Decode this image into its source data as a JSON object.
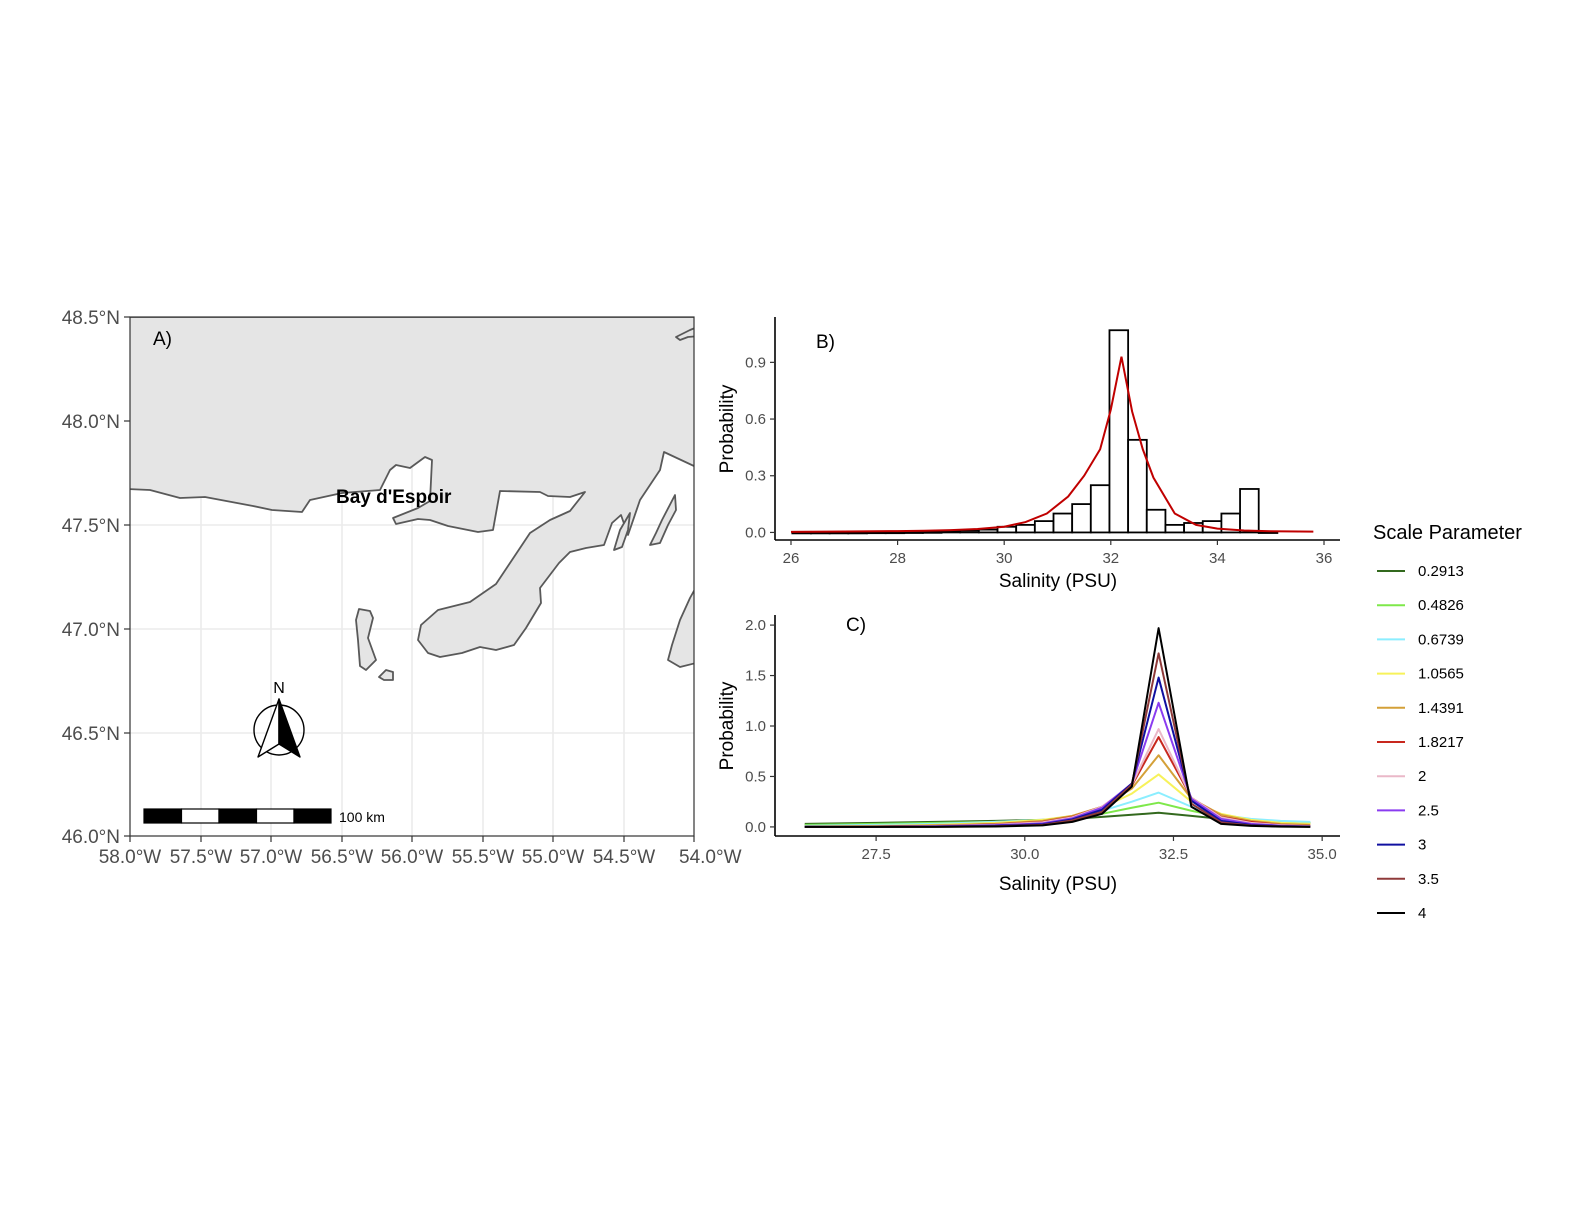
{
  "map": {
    "panel_label": "A)",
    "place_label": "Bay d'Espoir",
    "north_label": "N",
    "scalebar_label": "100 km",
    "lon_ticks": [
      "58.0°W",
      "57.5°W",
      "57.0°W",
      "56.5°W",
      "56.0°W",
      "55.5°W",
      "55.0°W",
      "54.5°W",
      "54.0°W"
    ],
    "lat_ticks": [
      "48.5°N",
      "48.0°N",
      "47.5°N",
      "47.0°N",
      "46.5°N",
      "46.0°N"
    ],
    "land_color": "#e5e5e5",
    "coast_color": "#595959"
  },
  "chart_data": [
    {
      "id": "B",
      "type": "bar",
      "panel_label": "B)",
      "xlabel": "Salinity (PSU)",
      "ylabel": "Probability",
      "xlim": [
        25.7,
        36.3
      ],
      "ylim": [
        -0.04,
        1.14
      ],
      "x_ticks": [
        26,
        28,
        30,
        32,
        34,
        36
      ],
      "y_ticks": [
        0.0,
        0.3,
        0.6,
        0.9
      ],
      "y_tick_labels": [
        "0.0",
        "0.3",
        "0.6",
        "0.9"
      ],
      "bin_width": 0.35,
      "bins": [
        {
          "x": 26.2,
          "value": 0.003
        },
        {
          "x": 26.55,
          "value": 0.003
        },
        {
          "x": 26.9,
          "value": 0.003
        },
        {
          "x": 27.25,
          "value": 0.003
        },
        {
          "x": 27.6,
          "value": 0.004
        },
        {
          "x": 27.95,
          "value": 0.004
        },
        {
          "x": 28.3,
          "value": 0.005
        },
        {
          "x": 28.65,
          "value": 0.006
        },
        {
          "x": 29.0,
          "value": 0.008
        },
        {
          "x": 29.35,
          "value": 0.01
        },
        {
          "x": 29.7,
          "value": 0.015
        },
        {
          "x": 30.05,
          "value": 0.03
        },
        {
          "x": 30.4,
          "value": 0.04
        },
        {
          "x": 30.75,
          "value": 0.06
        },
        {
          "x": 31.1,
          "value": 0.1
        },
        {
          "x": 31.45,
          "value": 0.15
        },
        {
          "x": 31.8,
          "value": 0.25
        },
        {
          "x": 32.15,
          "value": 1.07
        },
        {
          "x": 32.5,
          "value": 0.49
        },
        {
          "x": 32.85,
          "value": 0.12
        },
        {
          "x": 33.2,
          "value": 0.04
        },
        {
          "x": 33.55,
          "value": 0.05
        },
        {
          "x": 33.9,
          "value": 0.06
        },
        {
          "x": 34.25,
          "value": 0.1
        },
        {
          "x": 34.6,
          "value": 0.23
        },
        {
          "x": 34.95,
          "value": 0.005
        }
      ],
      "bar_color": "#000000",
      "fit_line": {
        "color": "#c00000",
        "x": [
          26.0,
          27.0,
          28.0,
          28.5,
          29.0,
          29.5,
          30.0,
          30.4,
          30.8,
          31.2,
          31.5,
          31.8,
          32.0,
          32.2,
          32.4,
          32.6,
          32.8,
          33.2,
          33.6,
          34.0,
          34.5,
          35.0,
          35.8
        ],
        "y": [
          0.003,
          0.005,
          0.007,
          0.009,
          0.012,
          0.018,
          0.03,
          0.055,
          0.1,
          0.19,
          0.3,
          0.44,
          0.65,
          0.93,
          0.64,
          0.44,
          0.29,
          0.1,
          0.04,
          0.02,
          0.01,
          0.006,
          0.004
        ]
      }
    },
    {
      "id": "C",
      "type": "line",
      "panel_label": "C)",
      "xlabel": "Salinity (PSU)",
      "ylabel": "Probability",
      "xlim": [
        25.8,
        35.3
      ],
      "ylim": [
        -0.09,
        2.1
      ],
      "x_ticks": [
        27.5,
        30.0,
        32.5,
        35.0
      ],
      "x_tick_labels": [
        "27.5",
        "30.0",
        "32.5",
        "35.0"
      ],
      "y_ticks": [
        0.0,
        0.5,
        1.0,
        1.5,
        2.0
      ],
      "y_tick_labels": [
        "0.0",
        "0.5",
        "1.0",
        "1.5",
        "2.0"
      ],
      "x": [
        26.3,
        27.5,
        28.5,
        29.5,
        30.3,
        30.8,
        31.3,
        31.8,
        32.25,
        32.8,
        33.3,
        33.8,
        34.3,
        34.8
      ],
      "series": [
        {
          "name": "0.2913",
          "color": "#33691e",
          "values": [
            0.03,
            0.04,
            0.05,
            0.06,
            0.07,
            0.08,
            0.1,
            0.12,
            0.14,
            0.11,
            0.08,
            0.06,
            0.05,
            0.04
          ]
        },
        {
          "name": "0.4826",
          "color": "#7ee84a",
          "values": [
            0.02,
            0.03,
            0.04,
            0.05,
            0.07,
            0.09,
            0.13,
            0.19,
            0.24,
            0.16,
            0.1,
            0.07,
            0.05,
            0.04
          ]
        },
        {
          "name": "0.6739",
          "color": "#8beeff",
          "values": [
            0.01,
            0.02,
            0.03,
            0.05,
            0.07,
            0.1,
            0.16,
            0.25,
            0.34,
            0.2,
            0.12,
            0.08,
            0.06,
            0.05
          ]
        },
        {
          "name": "1.0565",
          "color": "#f7f25a",
          "values": [
            0.005,
            0.01,
            0.02,
            0.04,
            0.07,
            0.11,
            0.19,
            0.33,
            0.52,
            0.25,
            0.13,
            0.07,
            0.04,
            0.03
          ]
        },
        {
          "name": "1.4391",
          "color": "#d4a038",
          "values": [
            0.003,
            0.006,
            0.015,
            0.03,
            0.06,
            0.11,
            0.2,
            0.38,
            0.71,
            0.28,
            0.12,
            0.06,
            0.03,
            0.02
          ]
        },
        {
          "name": "1.8217",
          "color": "#c8281e",
          "values": [
            0.002,
            0.004,
            0.01,
            0.025,
            0.05,
            0.1,
            0.2,
            0.41,
            0.89,
            0.29,
            0.1,
            0.05,
            0.02,
            0.01
          ]
        },
        {
          "name": "2",
          "color": "#eab8c8",
          "values": [
            0.002,
            0.003,
            0.009,
            0.022,
            0.045,
            0.095,
            0.2,
            0.42,
            0.97,
            0.29,
            0.095,
            0.04,
            0.018,
            0.008
          ]
        },
        {
          "name": "2.5",
          "color": "#8a3cf0",
          "values": [
            0.001,
            0.002,
            0.006,
            0.016,
            0.035,
            0.085,
            0.19,
            0.43,
            1.23,
            0.28,
            0.08,
            0.03,
            0.012,
            0.005
          ]
        },
        {
          "name": "3",
          "color": "#1010a0",
          "values": [
            0.0,
            0.001,
            0.004,
            0.011,
            0.027,
            0.075,
            0.17,
            0.43,
            1.48,
            0.26,
            0.06,
            0.02,
            0.008,
            0.003
          ]
        },
        {
          "name": "3.5",
          "color": "#8f3a3a",
          "values": [
            0.0,
            0.0,
            0.002,
            0.007,
            0.02,
            0.065,
            0.15,
            0.42,
            1.72,
            0.23,
            0.045,
            0.014,
            0.005,
            0.002
          ]
        },
        {
          "name": "4",
          "color": "#000000",
          "values": [
            0.0,
            0.0,
            0.001,
            0.004,
            0.015,
            0.05,
            0.13,
            0.4,
            1.97,
            0.2,
            0.03,
            0.01,
            0.003,
            0.001
          ]
        }
      ]
    }
  ],
  "legend": {
    "title": "Scale Parameter"
  }
}
